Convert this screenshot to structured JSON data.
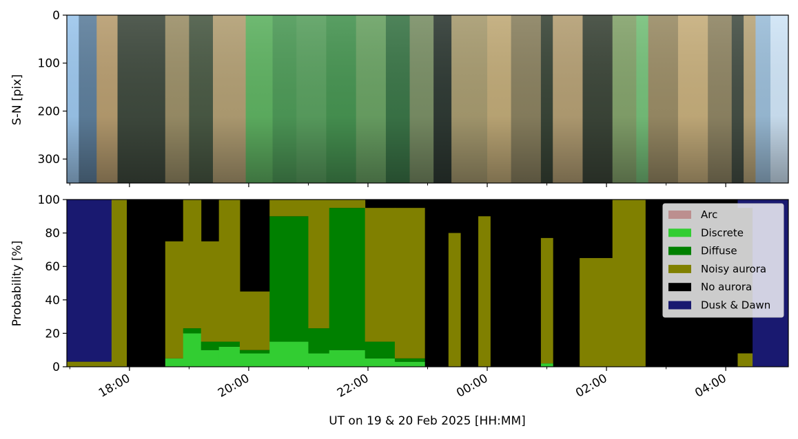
{
  "chart_data": [
    {
      "type": "heatmap",
      "description_kind": "keogram",
      "ylabel": "S-N [pix]",
      "yticks": [
        0,
        100,
        200,
        300
      ],
      "ylim": [
        350,
        0
      ],
      "xlim_hours": [
        16.95,
        29.05
      ],
      "image_bands": [
        {
          "start": 16.95,
          "end": 17.15,
          "color": "#9cc6ec"
        },
        {
          "start": 17.15,
          "end": 17.45,
          "color": "#5e7f9c"
        },
        {
          "start": 17.45,
          "end": 17.8,
          "color": "#b79d70"
        },
        {
          "start": 17.8,
          "end": 18.6,
          "color": "#3f4a3e"
        },
        {
          "start": 18.6,
          "end": 19.0,
          "color": "#9b8f68"
        },
        {
          "start": 19.0,
          "end": 19.4,
          "color": "#4a5a45"
        },
        {
          "start": 19.4,
          "end": 19.95,
          "color": "#b29f74"
        },
        {
          "start": 19.95,
          "end": 20.4,
          "color": "#5fb262"
        },
        {
          "start": 20.4,
          "end": 20.8,
          "color": "#4e9a58"
        },
        {
          "start": 20.8,
          "end": 21.3,
          "color": "#5aa060"
        },
        {
          "start": 21.3,
          "end": 21.8,
          "color": "#479452"
        },
        {
          "start": 21.8,
          "end": 22.3,
          "color": "#6aa264"
        },
        {
          "start": 22.3,
          "end": 22.7,
          "color": "#3b7648"
        },
        {
          "start": 22.7,
          "end": 23.1,
          "color": "#7a8f66"
        },
        {
          "start": 23.1,
          "end": 23.4,
          "color": "#2f3a34"
        },
        {
          "start": 23.4,
          "end": 24.0,
          "color": "#a79b70"
        },
        {
          "start": 24.0,
          "end": 24.4,
          "color": "#c0aa78"
        },
        {
          "start": 24.4,
          "end": 24.9,
          "color": "#8a8160"
        },
        {
          "start": 24.9,
          "end": 25.1,
          "color": "#3a4638"
        },
        {
          "start": 25.1,
          "end": 25.6,
          "color": "#b49f74"
        },
        {
          "start": 25.6,
          "end": 26.1,
          "color": "#3c4639"
        },
        {
          "start": 26.1,
          "end": 26.5,
          "color": "#84a36c"
        },
        {
          "start": 26.5,
          "end": 26.7,
          "color": "#76c07a"
        },
        {
          "start": 26.7,
          "end": 27.2,
          "color": "#9a8c66"
        },
        {
          "start": 27.2,
          "end": 27.7,
          "color": "#c6ae7c"
        },
        {
          "start": 27.7,
          "end": 28.1,
          "color": "#8f8564"
        },
        {
          "start": 28.1,
          "end": 28.3,
          "color": "#454f45"
        },
        {
          "start": 28.3,
          "end": 28.5,
          "color": "#b8a57a"
        },
        {
          "start": 28.5,
          "end": 28.75,
          "color": "#9bbdd8"
        },
        {
          "start": 28.75,
          "end": 29.05,
          "color": "#cfe4f6"
        }
      ]
    },
    {
      "type": "area",
      "stacked": true,
      "ylabel": "Probability [%]",
      "xlabel": "UT on 19 & 20 Feb 2025 [HH:MM]",
      "ylim": [
        0,
        100
      ],
      "yticks": [
        0,
        20,
        40,
        60,
        80,
        100
      ],
      "xlim_hours": [
        16.95,
        29.05
      ],
      "xtick_hours": [
        18,
        20,
        22,
        24,
        26,
        28
      ],
      "xtick_labels": [
        "18:00",
        "20:00",
        "22:00",
        "00:00",
        "02:00",
        "04:00"
      ],
      "minor_tick_hours": [
        17,
        19,
        21,
        23,
        25,
        27
      ],
      "legend_position": "top-right",
      "legend": [
        {
          "name": "Arc",
          "color": "#bc8f8f"
        },
        {
          "name": "Discrete",
          "color": "#32cd32"
        },
        {
          "name": "Diffuse",
          "color": "#008000"
        },
        {
          "name": "Noisy aurora",
          "color": "#808000"
        },
        {
          "name": "No aurora",
          "color": "#000000"
        },
        {
          "name": "Dusk & Dawn",
          "color": "#191970"
        }
      ],
      "segments": [
        {
          "start": 16.95,
          "end": 17.7,
          "arc": 0,
          "discrete": 0,
          "diffuse": 0,
          "noisy": 3,
          "dusk": 97
        },
        {
          "start": 17.7,
          "end": 17.95,
          "arc": 0,
          "discrete": 0,
          "diffuse": 0,
          "noisy": 100,
          "dusk": 0
        },
        {
          "start": 17.95,
          "end": 18.6,
          "arc": 0,
          "discrete": 0,
          "diffuse": 0,
          "noisy": 0,
          "dusk": 0
        },
        {
          "start": 18.6,
          "end": 18.9,
          "arc": 0,
          "discrete": 5,
          "diffuse": 0,
          "noisy": 70,
          "dusk": 0
        },
        {
          "start": 18.9,
          "end": 19.2,
          "arc": 0,
          "discrete": 20,
          "diffuse": 3,
          "noisy": 77,
          "dusk": 0
        },
        {
          "start": 19.2,
          "end": 19.5,
          "arc": 0,
          "discrete": 10,
          "diffuse": 5,
          "noisy": 60,
          "dusk": 0
        },
        {
          "start": 19.5,
          "end": 19.85,
          "arc": 0,
          "discrete": 12,
          "diffuse": 3,
          "noisy": 85,
          "dusk": 0
        },
        {
          "start": 19.85,
          "end": 20.35,
          "arc": 0,
          "discrete": 8,
          "diffuse": 2,
          "noisy": 35,
          "dusk": 0
        },
        {
          "start": 20.35,
          "end": 21.0,
          "arc": 0,
          "discrete": 15,
          "diffuse": 75,
          "noisy": 10,
          "dusk": 0
        },
        {
          "start": 21.0,
          "end": 21.35,
          "arc": 0,
          "discrete": 8,
          "diffuse": 15,
          "noisy": 77,
          "dusk": 0
        },
        {
          "start": 21.35,
          "end": 21.95,
          "arc": 0,
          "discrete": 10,
          "diffuse": 85,
          "noisy": 5,
          "dusk": 0
        },
        {
          "start": 21.95,
          "end": 22.45,
          "arc": 0,
          "discrete": 5,
          "diffuse": 10,
          "noisy": 80,
          "dusk": 0
        },
        {
          "start": 22.45,
          "end": 22.95,
          "arc": 0,
          "discrete": 3,
          "diffuse": 2,
          "noisy": 90,
          "dusk": 0
        },
        {
          "start": 22.95,
          "end": 23.35,
          "arc": 0,
          "discrete": 0,
          "diffuse": 0,
          "noisy": 0,
          "dusk": 0
        },
        {
          "start": 23.35,
          "end": 23.55,
          "arc": 0,
          "discrete": 0,
          "diffuse": 0,
          "noisy": 80,
          "dusk": 0
        },
        {
          "start": 23.55,
          "end": 23.85,
          "arc": 0,
          "discrete": 0,
          "diffuse": 0,
          "noisy": 0,
          "dusk": 0
        },
        {
          "start": 23.85,
          "end": 24.05,
          "arc": 0,
          "discrete": 0,
          "diffuse": 0,
          "noisy": 90,
          "dusk": 0
        },
        {
          "start": 24.05,
          "end": 24.9,
          "arc": 0,
          "discrete": 0,
          "diffuse": 0,
          "noisy": 0,
          "dusk": 0
        },
        {
          "start": 24.9,
          "end": 25.1,
          "arc": 0,
          "discrete": 2,
          "diffuse": 0,
          "noisy": 75,
          "dusk": 0
        },
        {
          "start": 25.1,
          "end": 25.55,
          "arc": 0,
          "discrete": 0,
          "diffuse": 0,
          "noisy": 0,
          "dusk": 0
        },
        {
          "start": 25.55,
          "end": 26.1,
          "arc": 0,
          "discrete": 0,
          "diffuse": 0,
          "noisy": 65,
          "dusk": 0
        },
        {
          "start": 26.1,
          "end": 26.65,
          "arc": 0,
          "discrete": 0,
          "diffuse": 0,
          "noisy": 100,
          "dusk": 0
        },
        {
          "start": 26.65,
          "end": 28.2,
          "arc": 0,
          "discrete": 0,
          "diffuse": 0,
          "noisy": 0,
          "dusk": 0
        },
        {
          "start": 28.2,
          "end": 28.45,
          "arc": 0,
          "discrete": 0,
          "diffuse": 0,
          "noisy": 8,
          "dusk": 5
        },
        {
          "start": 28.45,
          "end": 29.05,
          "arc": 0,
          "discrete": 0,
          "diffuse": 0,
          "noisy": 0,
          "dusk": 100
        }
      ]
    }
  ]
}
